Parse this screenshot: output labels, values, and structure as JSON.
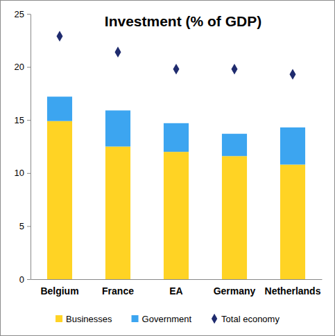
{
  "chart_data": {
    "type": "bar",
    "title": "Investment (% of GDP)",
    "categories": [
      "Belgium",
      "France",
      "EA",
      "Germany",
      "Netherlands"
    ],
    "stacked": true,
    "legend": "bottom",
    "grid": false,
    "ylim": [
      0,
      25
    ],
    "yticks": [
      0,
      5,
      10,
      15,
      20,
      25
    ],
    "series": [
      {
        "name": "Businesses",
        "type": "bar",
        "color": "#ffd324",
        "values": [
          14.9,
          12.5,
          12.0,
          11.6,
          10.8
        ]
      },
      {
        "name": "Government",
        "type": "bar",
        "color": "#3ca5f0",
        "values": [
          2.3,
          3.4,
          2.7,
          2.1,
          3.5
        ]
      },
      {
        "name": "Total economy",
        "type": "scatter",
        "marker": "diamond",
        "color": "#1f2b6e",
        "values": [
          22.9,
          21.4,
          19.8,
          19.8,
          19.3
        ]
      }
    ]
  }
}
